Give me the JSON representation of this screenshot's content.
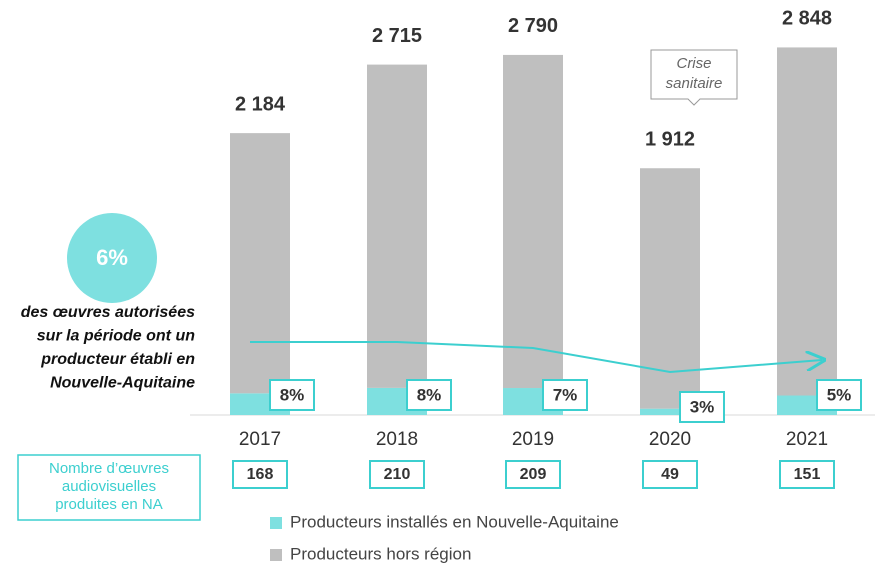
{
  "chart_data": {
    "type": "stacked_bar",
    "categories": [
      "2017",
      "2018",
      "2019",
      "2020",
      "2021"
    ],
    "series": [
      {
        "name": "Producteurs installés en Nouvelle-Aquitaine",
        "color": "#7ee0e0",
        "values": [
          168,
          210,
          209,
          49,
          151
        ]
      },
      {
        "name": "Producteurs hors région",
        "color": "#bfbfbf",
        "values": [
          2016,
          2505,
          2581,
          1863,
          2697
        ]
      }
    ],
    "totals": [
      2184,
      2715,
      2790,
      1912,
      2848
    ],
    "total_labels": [
      "2 184",
      "2 715",
      "2 790",
      "1 912",
      "2 848"
    ],
    "shares": {
      "values": [
        8,
        8,
        7,
        3,
        5
      ],
      "value_labels": [
        "8%",
        "8%",
        "7%",
        "3%",
        "5%"
      ],
      "color": "#3ccfcf"
    },
    "ylim": [
      0,
      3200
    ],
    "highlight": {
      "value": 6,
      "label": "6%",
      "text": [
        "des œuvres autorisées",
        "sur la période ont un",
        "producteur établi en",
        "Nouvelle-Aquitaine"
      ]
    },
    "annotation": [
      "Crise",
      "sanitaire"
    ],
    "count_caption": [
      "Nombre d’œuvres",
      "audiovisuelles",
      "produites en NA"
    ]
  }
}
